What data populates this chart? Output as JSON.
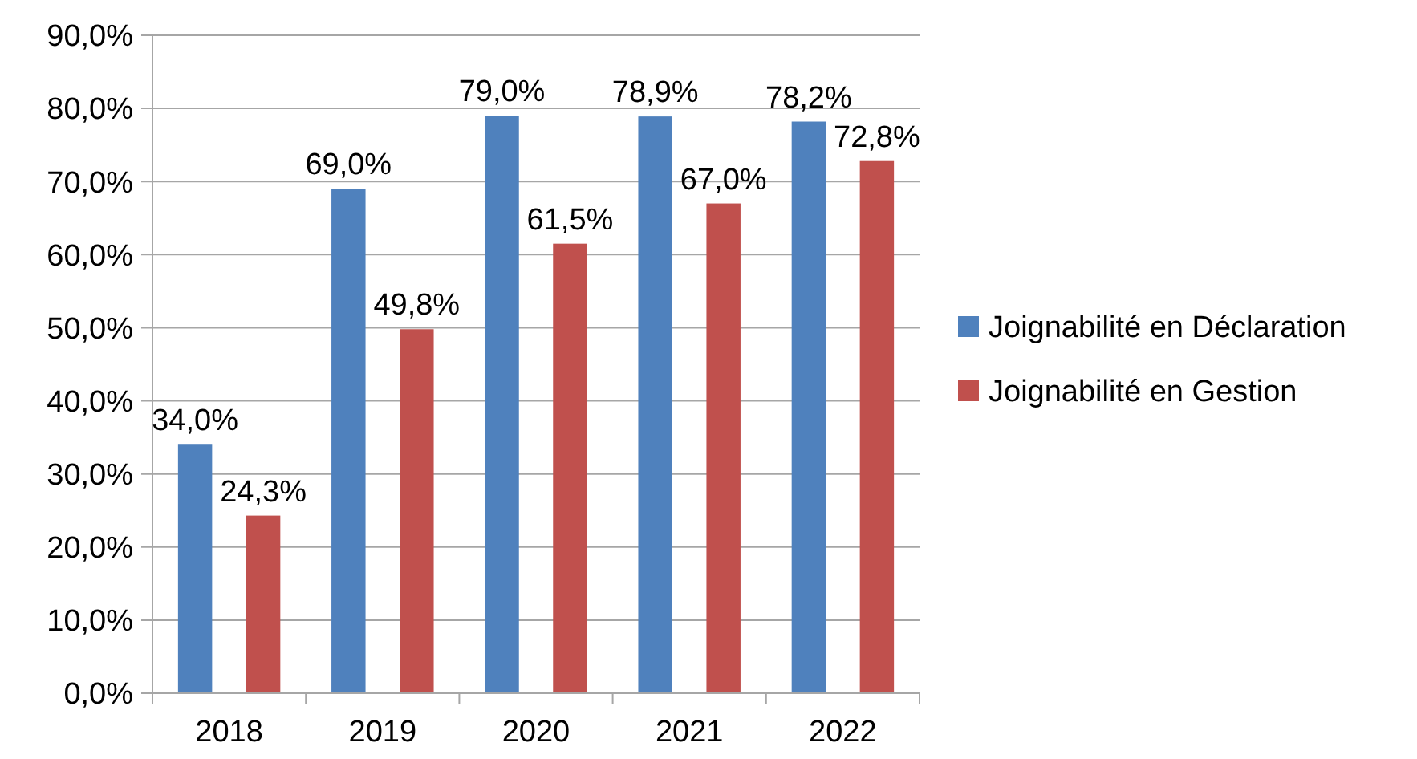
{
  "chart_data": {
    "type": "bar",
    "categories": [
      "2018",
      "2019",
      "2020",
      "2021",
      "2022"
    ],
    "series": [
      {
        "name": "Joignabilité en Déclaration",
        "color": "#4f81bd",
        "values": [
          34.0,
          69.0,
          79.0,
          78.9,
          78.2
        ],
        "value_labels": [
          "34,0%",
          "69,0%",
          "79,0%",
          "78,9%",
          "78,2%"
        ]
      },
      {
        "name": "Joignabilité en Gestion",
        "color": "#c0504d",
        "values": [
          24.3,
          49.8,
          61.5,
          67.0,
          72.8
        ],
        "value_labels": [
          "24,3%",
          "49,8%",
          "61,5%",
          "67,0%",
          "72,8%"
        ]
      }
    ],
    "ylim": [
      0,
      90
    ],
    "yticks": [
      {
        "value": 0,
        "label": "0,0%"
      },
      {
        "value": 10,
        "label": "10,0%"
      },
      {
        "value": 20,
        "label": "20,0%"
      },
      {
        "value": 30,
        "label": "30,0%"
      },
      {
        "value": 40,
        "label": "40,0%"
      },
      {
        "value": 50,
        "label": "50,0%"
      },
      {
        "value": 60,
        "label": "60,0%"
      },
      {
        "value": 70,
        "label": "70,0%"
      },
      {
        "value": 80,
        "label": "80,0%"
      },
      {
        "value": 90,
        "label": "90,0%"
      }
    ],
    "grid": "y",
    "legend": "right"
  }
}
